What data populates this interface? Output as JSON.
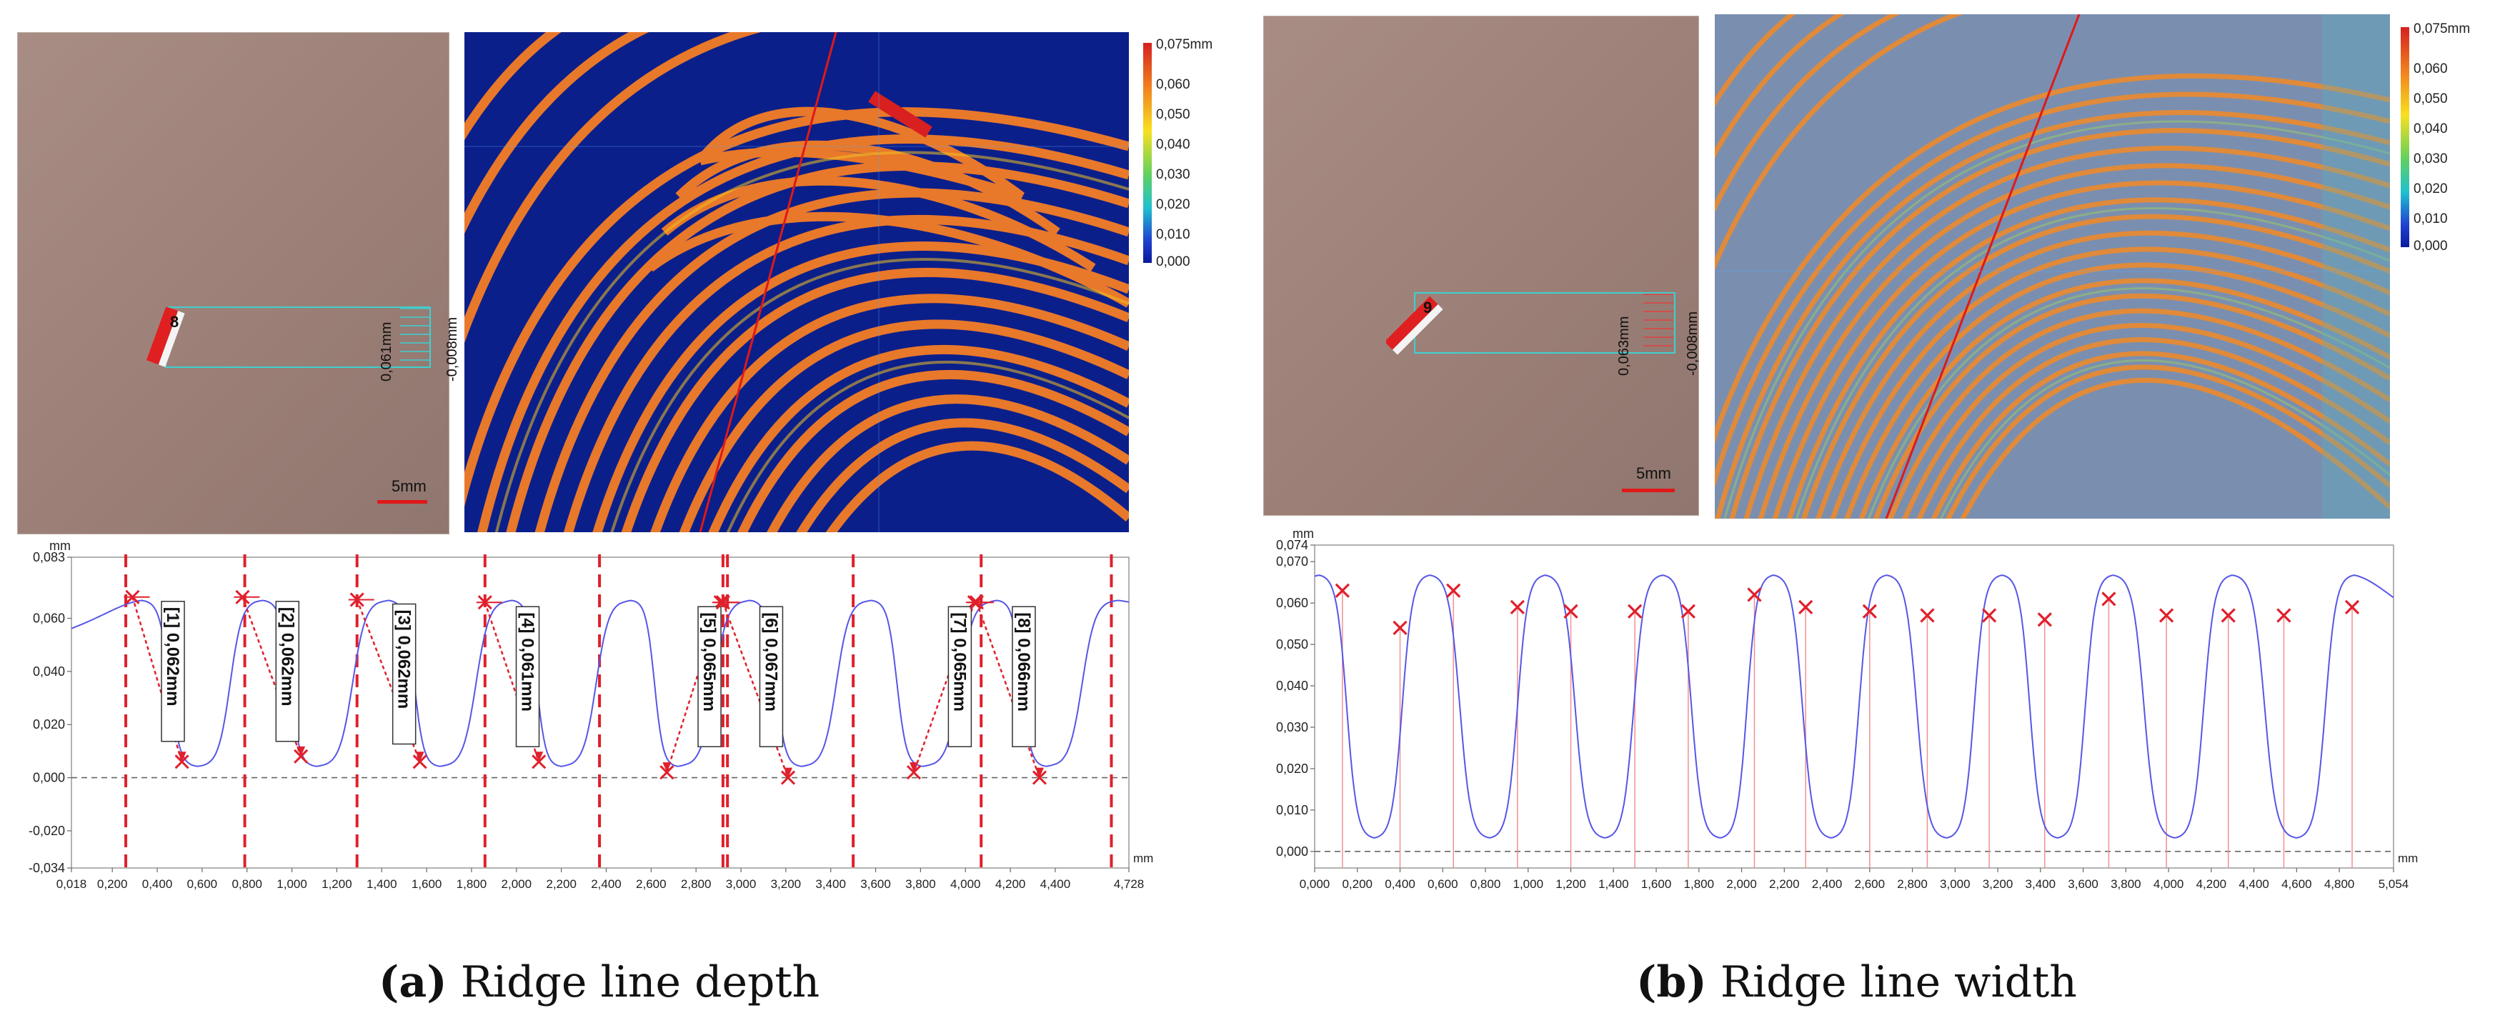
{
  "panel_a": {
    "colorbar": {
      "top_label": "0,075mm",
      "ticks": [
        "0,060",
        "0,050",
        "0,040",
        "0,030",
        "0,020",
        "0,010",
        "0,000"
      ]
    },
    "scale_label": "5mm",
    "inset_labels": {
      "main": "0,061mm",
      "small": "-0,008mm",
      "point_id": "8"
    },
    "caption_letter": "(a)",
    "caption_text": "Ridge line depth"
  },
  "panel_b": {
    "colorbar": {
      "top_label": "0,075mm",
      "ticks": [
        "0,060",
        "0,050",
        "0,040",
        "0,030",
        "0,020",
        "0,010",
        "0,000"
      ]
    },
    "scale_label": "5mm",
    "inset_labels": {
      "main": "0,063mm",
      "small": "-0,008mm",
      "point_id": "9"
    },
    "caption_letter": "(b)",
    "caption_text": "Ridge line width"
  },
  "colors": {
    "profile_line": "#5656e8",
    "marker": "#e0202c",
    "colorbar_top": "#d42020",
    "colorbar_bottom": "#0a1a9a"
  },
  "chart_data": [
    {
      "type": "line",
      "unit_label": "mm",
      "x_unit_label": "mm",
      "y_ticks": [
        "0,083",
        "0,060",
        "0,040",
        "0,020",
        "0,000",
        "-0,020",
        "-0,034"
      ],
      "y_tick_values": [
        0.083,
        0.06,
        0.04,
        0.02,
        0.0,
        -0.02,
        -0.034
      ],
      "ylim": [
        -0.034,
        0.083
      ],
      "x_ticks": [
        "0,018",
        "0,200",
        "0,400",
        "0,600",
        "0,800",
        "1,000",
        "1,200",
        "1,400",
        "1,600",
        "1,800",
        "2,000",
        "2,200",
        "2,400",
        "2,600",
        "2,800",
        "3,000",
        "3,200",
        "3,400",
        "3,600",
        "3,800",
        "4,000",
        "4,200",
        "4,400",
        "4,728"
      ],
      "x_tick_values": [
        0.018,
        0.2,
        0.4,
        0.6,
        0.8,
        1.0,
        1.2,
        1.4,
        1.6,
        1.8,
        2.0,
        2.2,
        2.4,
        2.6,
        2.8,
        3.0,
        3.2,
        3.4,
        3.6,
        3.8,
        4.0,
        4.2,
        4.4,
        4.728
      ],
      "xlim": [
        0.018,
        4.728
      ],
      "baseline": 0.0,
      "ridge_centers": [
        0.33,
        0.87,
        1.43,
        1.98,
        2.51,
        3.04,
        3.58,
        4.14,
        4.68
      ],
      "groove_centers": [
        0.58,
        1.11,
        1.66,
        2.2,
        2.72,
        3.27,
        3.81,
        4.36
      ],
      "ridge_level": 0.067,
      "groove_level": 0.004,
      "dividers_x": [
        0.26,
        0.79,
        1.29,
        1.86,
        2.37,
        2.92,
        2.94,
        3.5,
        4.07,
        4.65
      ],
      "measurements": [
        {
          "label": "[1] 0,062mm",
          "x_top": 0.29,
          "y_top": 0.068,
          "x_bottom": 0.51,
          "y_bottom": 0.006
        },
        {
          "label": "[2] 0,062mm",
          "x_top": 0.78,
          "y_top": 0.068,
          "x_bottom": 1.04,
          "y_bottom": 0.008
        },
        {
          "label": "[3] 0,062mm",
          "x_top": 1.29,
          "y_top": 0.067,
          "x_bottom": 1.57,
          "y_bottom": 0.006
        },
        {
          "label": "[4] 0,061mm",
          "x_top": 1.86,
          "y_top": 0.066,
          "x_bottom": 2.1,
          "y_bottom": 0.006
        },
        {
          "label": "[5] 0,065mm",
          "x_top": 2.91,
          "y_top": 0.066,
          "x_bottom": 2.67,
          "y_bottom": 0.002
        },
        {
          "label": "[6] 0,067mm",
          "x_top": 2.92,
          "y_top": 0.066,
          "x_bottom": 3.21,
          "y_bottom": 0.0
        },
        {
          "label": "[7] 0,065mm",
          "x_top": 4.04,
          "y_top": 0.066,
          "x_bottom": 3.77,
          "y_bottom": 0.002
        },
        {
          "label": "[8] 0,066mm",
          "x_top": 4.05,
          "y_top": 0.066,
          "x_bottom": 4.33,
          "y_bottom": 0.0
        }
      ]
    },
    {
      "type": "line",
      "unit_label": "mm",
      "x_unit_label": "mm",
      "y_ticks": [
        "0,074",
        "0,070",
        "0,060",
        "0,050",
        "0,040",
        "0,030",
        "0,020",
        "0,010",
        "0,000"
      ],
      "y_tick_values": [
        0.074,
        0.07,
        0.06,
        0.05,
        0.04,
        0.03,
        0.02,
        0.01,
        0.0
      ],
      "ylim": [
        -0.004,
        0.074
      ],
      "x_ticks": [
        "0,000",
        "0,200",
        "0,400",
        "0,600",
        "0,800",
        "1,000",
        "1,200",
        "1,400",
        "1,600",
        "1,800",
        "2,000",
        "2,200",
        "2,400",
        "2,600",
        "2,800",
        "3,000",
        "3,200",
        "3,400",
        "3,600",
        "3,800",
        "4,000",
        "4,200",
        "4,400",
        "4,600",
        "4,800",
        "5,054"
      ],
      "x_tick_values": [
        0,
        0.2,
        0.4,
        0.6,
        0.8,
        1.0,
        1.2,
        1.4,
        1.6,
        1.8,
        2.0,
        2.2,
        2.4,
        2.6,
        2.8,
        3.0,
        3.2,
        3.4,
        3.6,
        3.8,
        4.0,
        4.2,
        4.4,
        4.6,
        4.8,
        5.054
      ],
      "xlim": [
        0.0,
        5.054
      ],
      "baseline": 0.0,
      "ridge_centers": [
        0.02,
        0.54,
        1.08,
        1.63,
        2.15,
        2.68,
        3.22,
        3.74,
        4.3,
        4.87
      ],
      "groove_centers": [
        0.28,
        0.82,
        1.36,
        1.9,
        2.42,
        2.96,
        3.48,
        4.03,
        4.6
      ],
      "ridge_level": 0.067,
      "groove_level": 0.003,
      "markers": [
        {
          "x": 0.13,
          "y": 0.063
        },
        {
          "x": 0.4,
          "y": 0.054
        },
        {
          "x": 0.65,
          "y": 0.063
        },
        {
          "x": 0.95,
          "y": 0.059
        },
        {
          "x": 1.2,
          "y": 0.058
        },
        {
          "x": 1.5,
          "y": 0.058
        },
        {
          "x": 1.75,
          "y": 0.058
        },
        {
          "x": 2.06,
          "y": 0.062
        },
        {
          "x": 2.3,
          "y": 0.059
        },
        {
          "x": 2.6,
          "y": 0.058
        },
        {
          "x": 2.87,
          "y": 0.057
        },
        {
          "x": 3.16,
          "y": 0.057
        },
        {
          "x": 3.42,
          "y": 0.056
        },
        {
          "x": 3.72,
          "y": 0.061
        },
        {
          "x": 3.99,
          "y": 0.057
        },
        {
          "x": 4.28,
          "y": 0.057
        },
        {
          "x": 4.54,
          "y": 0.057
        },
        {
          "x": 4.86,
          "y": 0.059
        }
      ]
    }
  ]
}
